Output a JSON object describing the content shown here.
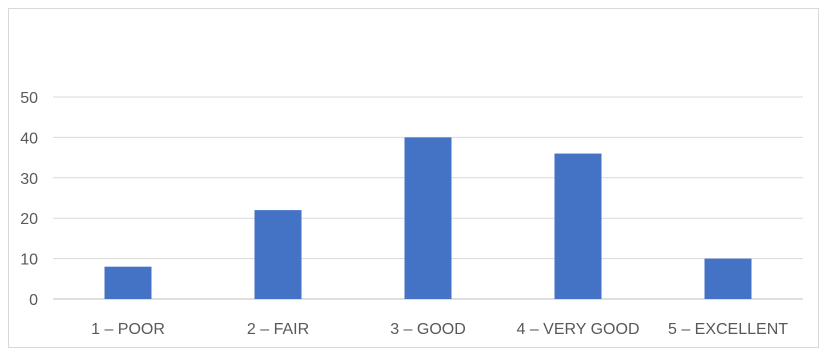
{
  "chart_data": {
    "type": "bar",
    "categories": [
      "1 – POOR",
      "2 – FAIR",
      "3 – GOOD",
      "4 – VERY GOOD",
      "5 – EXCELLENT"
    ],
    "values": [
      8,
      22,
      40,
      36,
      10
    ],
    "title": "",
    "xlabel": "",
    "ylabel": "",
    "ylim": [
      0,
      50
    ],
    "yticks": [
      0,
      10,
      20,
      30,
      40,
      50
    ],
    "grid": true,
    "legend": "none",
    "colors": {
      "bar": "#4472C4",
      "grid": "#d9d9d9",
      "text": "#595959"
    }
  }
}
